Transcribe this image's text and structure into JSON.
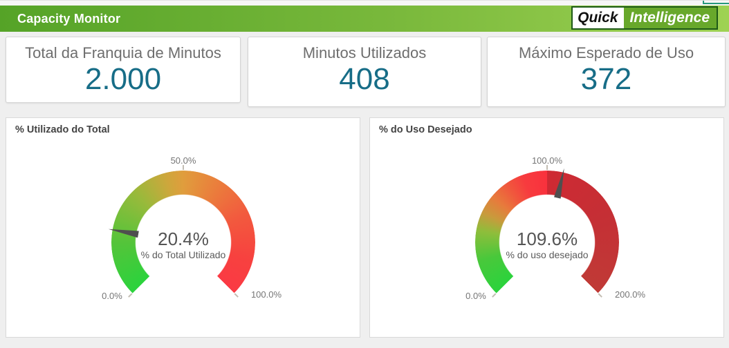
{
  "header": {
    "title": "Capacity Monitor",
    "logo": {
      "part1": "Quick",
      "part2": "Intelligence"
    }
  },
  "kpis": [
    {
      "label": "Total da Franquia de Minutos",
      "value": "2.000"
    },
    {
      "label": "Minutos Utilizados",
      "value": "408"
    },
    {
      "label": "Máximo Esperado de Uso",
      "value": "372"
    }
  ],
  "chart_data": [
    {
      "type": "gauge",
      "title": "% Utilizado do Total",
      "value": 20.4,
      "value_display": "20.4%",
      "center_label": "% do Total Utilizado",
      "min": 0,
      "max": 100,
      "sweep_deg": 270,
      "scale_labels": {
        "start": "0.0%",
        "mid": "50.0%",
        "end": "100.0%"
      },
      "gradient_stops": [
        [
          0,
          "#2bd33c"
        ],
        [
          45,
          "#54c43a"
        ],
        [
          90,
          "#97ba3b"
        ],
        [
          120,
          "#cda73c"
        ],
        [
          135,
          "#e09d3d"
        ],
        [
          165,
          "#ea7e3c"
        ],
        [
          200,
          "#f25a3e"
        ],
        [
          240,
          "#f7413f"
        ],
        [
          270,
          "#fb3a44"
        ]
      ],
      "needle_color": "#4f4f4f"
    },
    {
      "type": "gauge",
      "title": "% do Uso Desejado",
      "value": 109.6,
      "value_display": "109.6%",
      "center_label": "% do uso desejado",
      "min": 0,
      "max": 200,
      "sweep_deg": 270,
      "scale_labels": {
        "start": "0.0%",
        "mid": "100.0%",
        "end": "200.0%"
      },
      "gradient_stops": [
        [
          0,
          "#2bd33c"
        ],
        [
          30,
          "#49c83b"
        ],
        [
          55,
          "#8fbd3b"
        ],
        [
          70,
          "#c99a3c"
        ],
        [
          85,
          "#e77b3c"
        ],
        [
          100,
          "#f0583d"
        ],
        [
          115,
          "#f73b3e"
        ],
        [
          135,
          "#f9313d"
        ],
        [
          135,
          "#ce2a33"
        ],
        [
          200,
          "#c52f35"
        ],
        [
          270,
          "#c03a36"
        ]
      ],
      "needle_color": "#4f4f4f"
    }
  ],
  "colors": {
    "header_gradient_left": "#55a327",
    "header_gradient_right": "#9ed253",
    "kpi_value": "#176d87",
    "kpi_label": "#6e6e6e",
    "toolbar_fragment_teal": "#27987c"
  }
}
